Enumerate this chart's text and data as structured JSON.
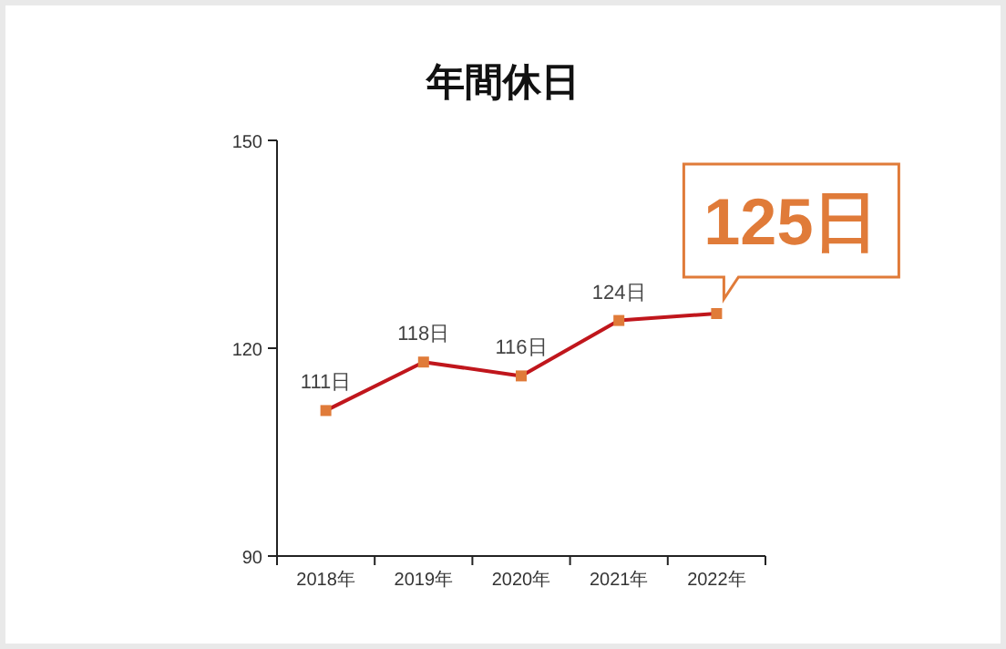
{
  "chart_data": {
    "type": "line",
    "title": "年間休日",
    "categories": [
      "2018年",
      "2019年",
      "2020年",
      "2021年",
      "2022年"
    ],
    "series": [
      {
        "color": "#c0161c",
        "colors": [
          "#e07b39",
          "#e07b39",
          "#e07b39",
          "#e07b39",
          "#e07b39"
        ],
        "values": [
          111,
          118,
          116,
          124,
          125
        ],
        "value_labels": [
          "111日",
          "118日",
          "116日",
          "124日",
          null
        ]
      }
    ],
    "annotations": [
      {
        "text": "125日",
        "x": "2022年",
        "y": 125
      }
    ],
    "ylim": [
      90,
      150
    ],
    "yticks": [
      90,
      120,
      150
    ],
    "marker": "square",
    "line_style": "solid",
    "grid": false
  }
}
